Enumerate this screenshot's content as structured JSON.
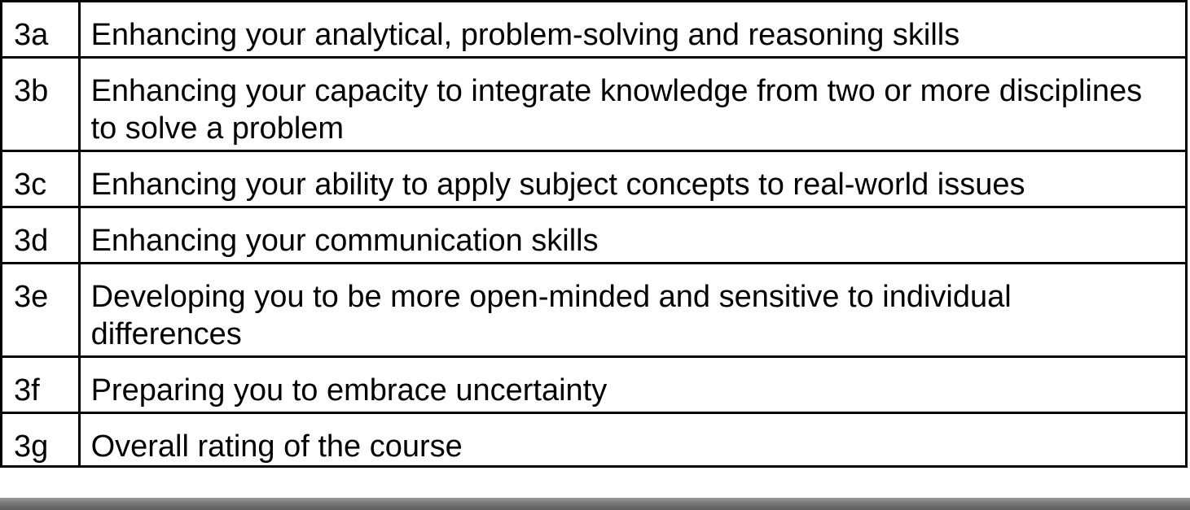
{
  "table": {
    "rows": [
      {
        "code": "3a",
        "text": "Enhancing your analytical, problem-solving and reasoning skills"
      },
      {
        "code": "3b",
        "text": "Enhancing your capacity to integrate knowledge from two or more disciplines to solve a problem"
      },
      {
        "code": "3c",
        "text": "Enhancing your ability to apply subject concepts to real-world issues"
      },
      {
        "code": "3d",
        "text": "Enhancing your communication skills"
      },
      {
        "code": "3e",
        "text": "Developing you to be more open-minded and sensitive to individual differences"
      },
      {
        "code": "3f",
        "text": "Preparing you to embrace uncertainty"
      },
      {
        "code": "3g",
        "text": "Overall rating of the course"
      }
    ]
  }
}
